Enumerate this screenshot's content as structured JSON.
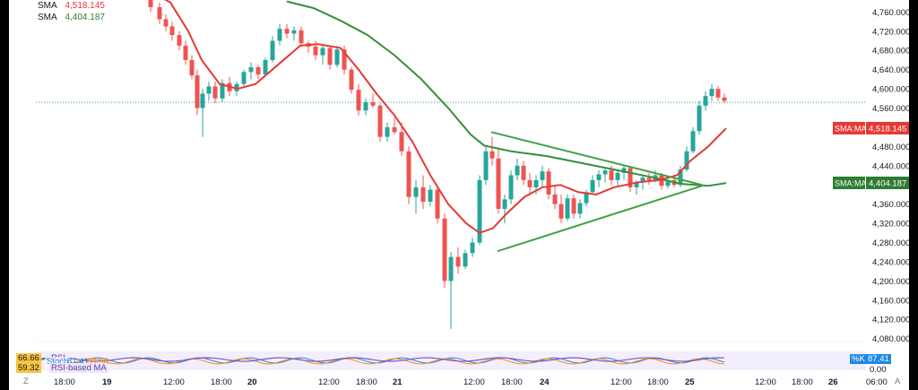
{
  "legend": {
    "sma_fast": {
      "name": "SMA",
      "value": "4,518.145"
    },
    "sma_slow": {
      "name": "SMA",
      "value": "4,404.187"
    }
  },
  "price_tags": [
    {
      "text": "SMA:MA",
      "value": "4,518.145",
      "price": 4518.145,
      "color": "#e53935"
    },
    {
      "text": "SMA:MA",
      "value": "4,404.187",
      "price": 4404.187,
      "color": "#2e7d32"
    }
  ],
  "last_price": 4572,
  "indicator": {
    "rsi_value": "66.66",
    "rsi_label": "RSI",
    "stoch_label": "Stoch",
    "stoch_k": "87.41",
    "stoch_d": "88.98",
    "ma_value": "59.32",
    "ma_label": "RSI-based MA",
    "tag_k": "%K",
    "tag_k_value": "87.41",
    "axis_value": "0.00"
  },
  "chart_data": {
    "type": "candlestick",
    "y_axis_ticks": [
      "4,760.000",
      "4,720.000",
      "4,680.000",
      "4,640.000",
      "4,600.000",
      "4,560.000",
      "4,520.000",
      "4,480.000",
      "4,440.000",
      "4,400.000",
      "4,360.000",
      "4,320.000",
      "4,280.000",
      "4,240.000",
      "4,200.000",
      "4,160.000",
      "4,120.000",
      "4,080.000"
    ],
    "ylim": [
      4070,
      4785
    ],
    "x_axis_ticks": [
      "18:00",
      "19",
      "12:00",
      "18:00",
      "20",
      "12:00",
      "18:00",
      "21",
      "12:00",
      "18:00",
      "24",
      "12:00",
      "18:00",
      "25",
      "12:00",
      "18:00",
      "26",
      "06:00"
    ],
    "series": [
      {
        "name": "SMA",
        "color": "#e53935"
      },
      {
        "name": "SMA",
        "color": "#2e7d32"
      }
    ],
    "trendlines": [
      {
        "from": [
          "2024-xx 21 18:00",
          4510
        ],
        "to": [
          "25",
          4400
        ]
      },
      {
        "from": [
          "2024-xx 21 18:00",
          4262
        ],
        "to": [
          "25",
          4398
        ]
      }
    ]
  },
  "footer": {
    "tz": "Z",
    "auto": "A"
  }
}
